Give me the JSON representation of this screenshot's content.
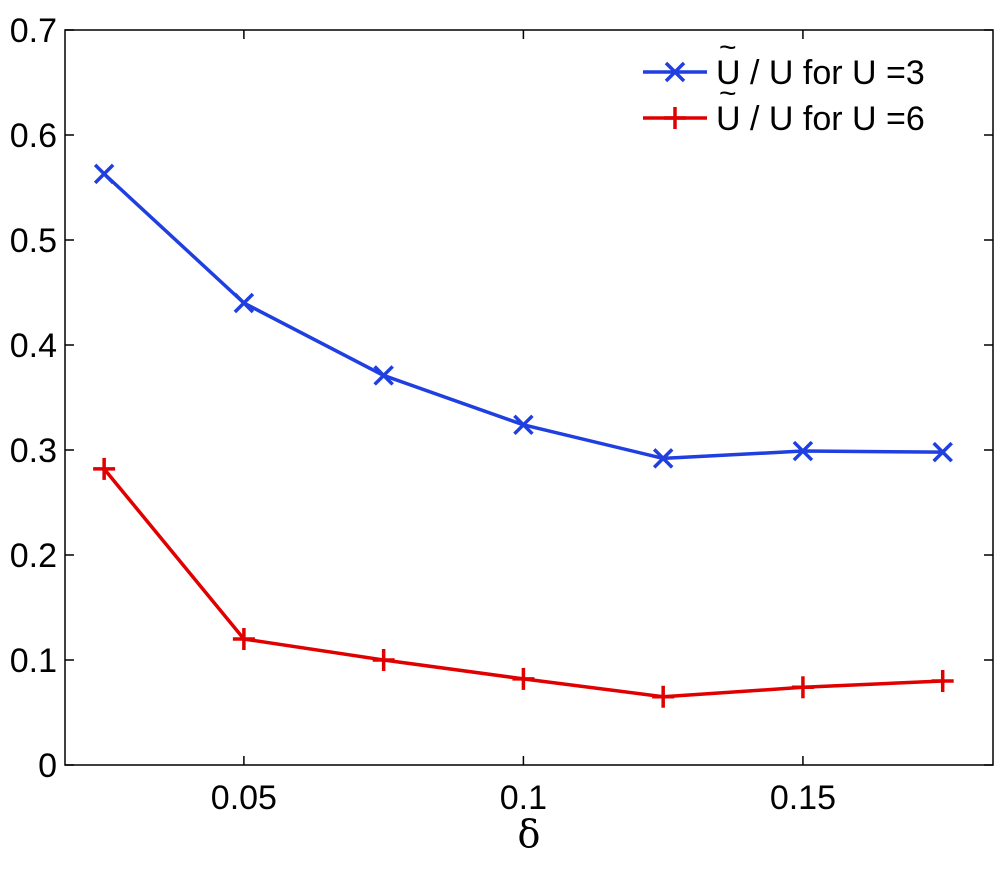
{
  "chart_data": {
    "type": "line",
    "title": "",
    "xlabel": "δ",
    "ylabel": "",
    "xlim": [
      0.018,
      0.184
    ],
    "ylim": [
      0,
      0.7
    ],
    "x_ticks": [
      0.05,
      0.1,
      0.15
    ],
    "x_tick_labels": [
      "0.05",
      "0.1",
      "0.15"
    ],
    "y_ticks": [
      0,
      0.1,
      0.2,
      0.3,
      0.4,
      0.5,
      0.6,
      0.7
    ],
    "y_tick_labels": [
      "0",
      "0.1",
      "0.2",
      "0.3",
      "0.4",
      "0.5",
      "0.6",
      "0.7"
    ],
    "grid": false,
    "legend_position": "top-right",
    "x": [
      0.025,
      0.05,
      0.075,
      0.1,
      0.125,
      0.15,
      0.175
    ],
    "series": [
      {
        "name": "Ũ / U for U =3",
        "legend_tilde": "~",
        "legend_text": "U / U for U =3",
        "color": "#1f3fe0",
        "marker": "x",
        "values": [
          0.563,
          0.44,
          0.371,
          0.324,
          0.292,
          0.299,
          0.298
        ]
      },
      {
        "name": "Ũ / U for U =6",
        "legend_tilde": "~",
        "legend_text": "U / U for U =6",
        "color": "#e00000",
        "marker": "+",
        "values": [
          0.282,
          0.12,
          0.1,
          0.082,
          0.065,
          0.074,
          0.08
        ]
      }
    ]
  }
}
